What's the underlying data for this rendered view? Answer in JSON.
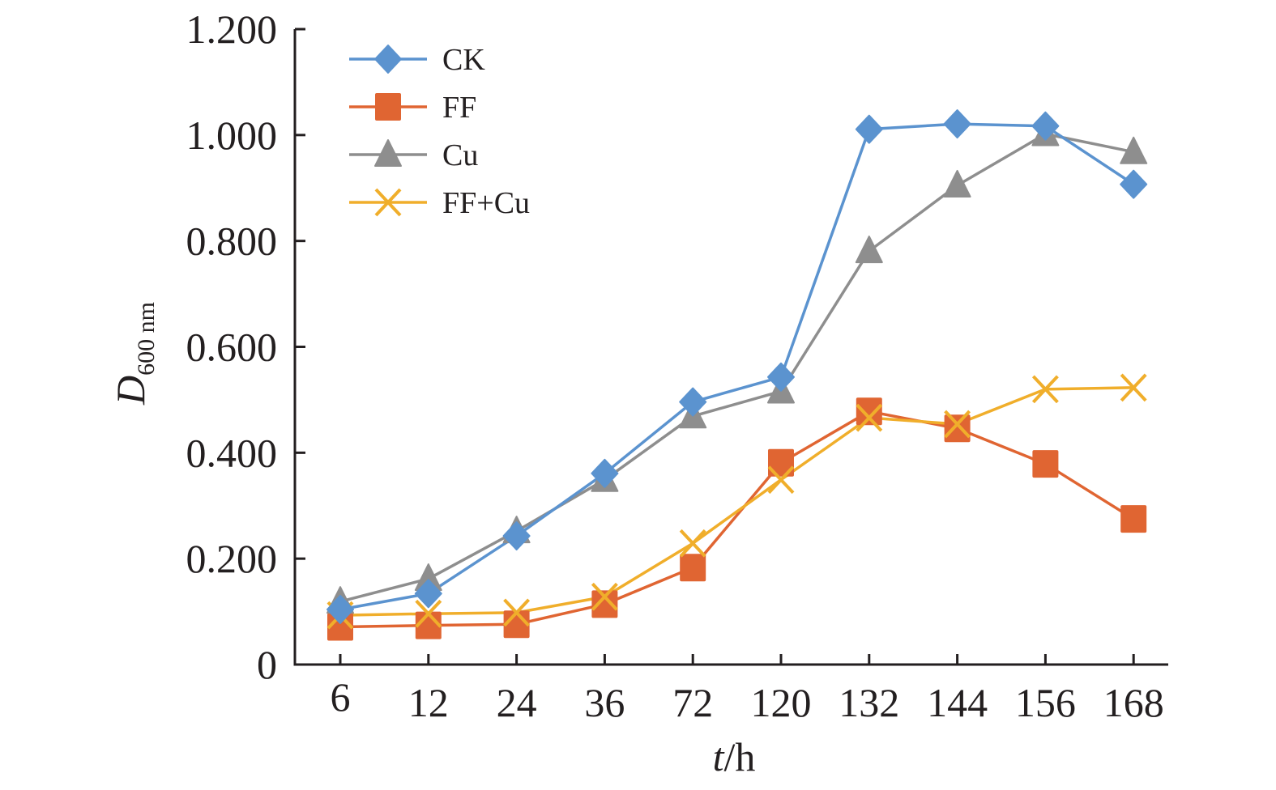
{
  "chart_data": {
    "type": "line",
    "title": "",
    "xlabel_italic": "t",
    "xlabel_rest": "/h",
    "ylabel_main": "D",
    "ylabel_sub": "600 nm",
    "categories": [
      "6",
      "12",
      "24",
      "36",
      "72",
      "120",
      "132",
      "144",
      "156",
      "168"
    ],
    "ylim": [
      0,
      1.2
    ],
    "yticks": [
      0,
      0.2,
      0.4,
      0.6,
      0.8,
      1.0,
      1.2
    ],
    "ytick_labels": [
      "0",
      "0.200",
      "0.400",
      "0.600",
      "0.800",
      "1.000",
      "1.200"
    ],
    "grid": false,
    "legend_position": "top-left",
    "series": [
      {
        "name": "CK",
        "marker": "diamond",
        "color": "#5b93cf",
        "values": [
          0.104,
          0.134,
          0.243,
          0.361,
          0.496,
          0.543,
          1.011,
          1.021,
          1.017,
          0.907
        ]
      },
      {
        "name": "FF",
        "marker": "square",
        "color": "#e06532",
        "values": [
          0.071,
          0.074,
          0.076,
          0.114,
          0.183,
          0.381,
          0.478,
          0.446,
          0.379,
          0.275
        ]
      },
      {
        "name": "Cu",
        "marker": "triangle",
        "color": "#8e8e8e",
        "values": [
          0.119,
          0.162,
          0.252,
          0.349,
          0.469,
          0.516,
          0.781,
          0.905,
          1.002,
          0.968
        ]
      },
      {
        "name": "FF+Cu",
        "marker": "x",
        "color": "#f0ae2b",
        "values": [
          0.093,
          0.096,
          0.098,
          0.128,
          0.229,
          0.349,
          0.466,
          0.454,
          0.52,
          0.523
        ]
      }
    ]
  }
}
